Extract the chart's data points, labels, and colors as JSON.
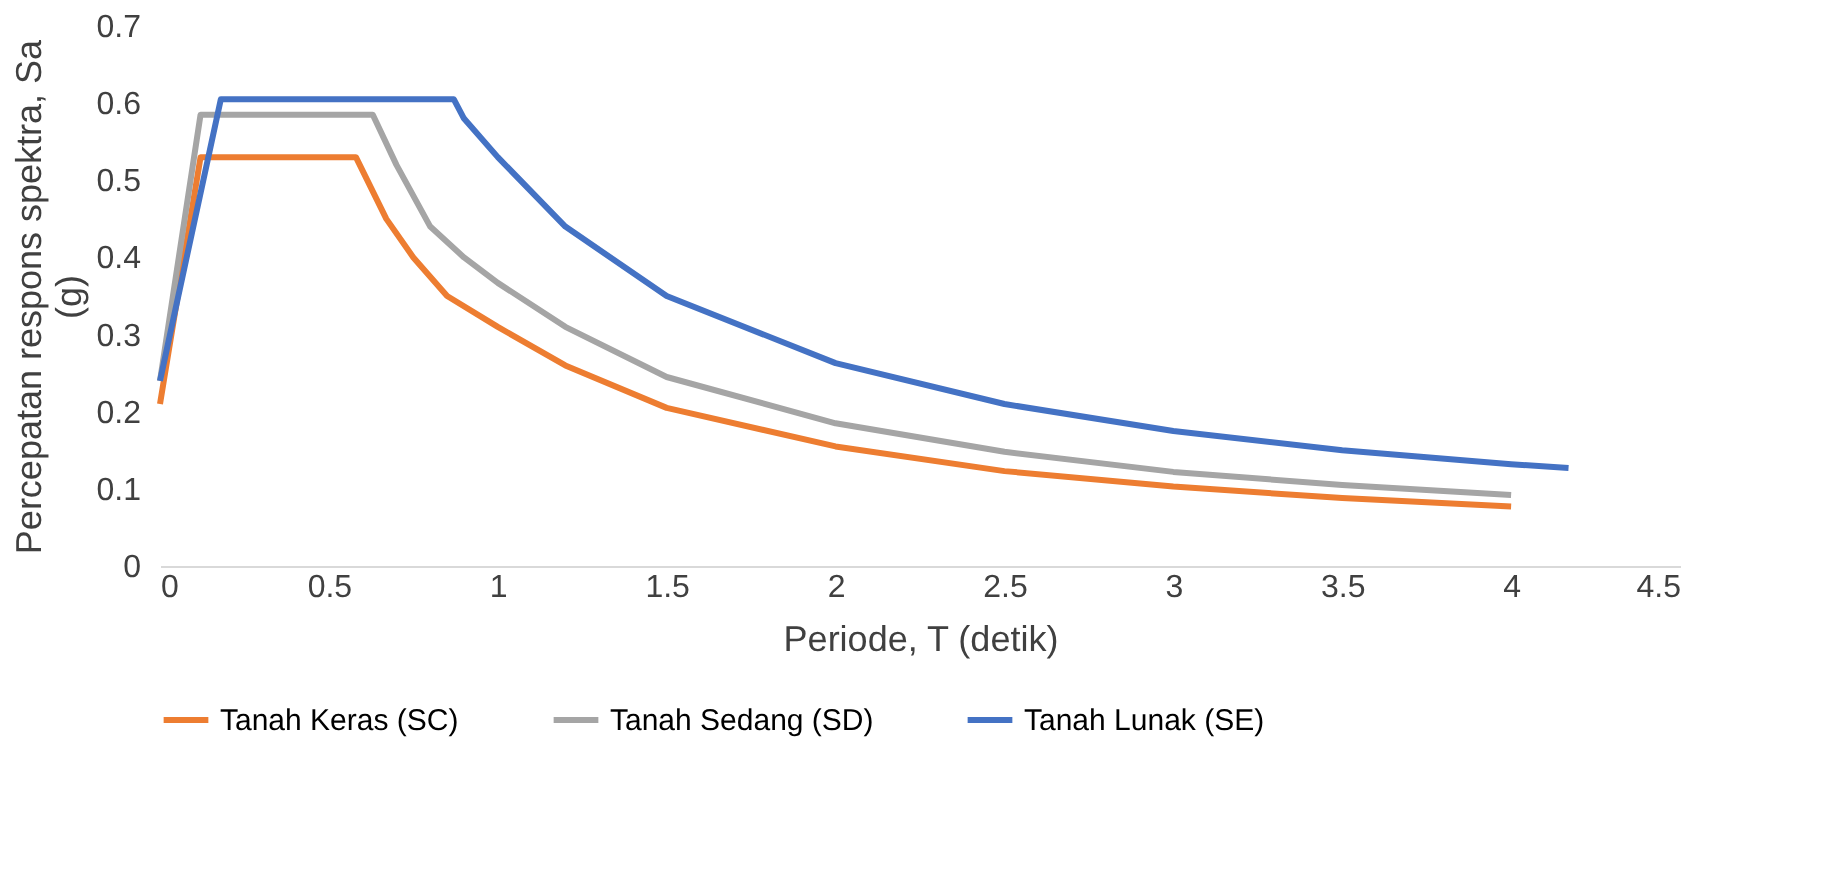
{
  "chart_data": {
    "type": "line",
    "xlabel": "Periode, T (detik)",
    "ylabel": "Percepatan respons spektra, Sa (g)",
    "xlim": [
      0,
      4.5
    ],
    "xticks": [
      0,
      0.5,
      1,
      1.5,
      2,
      2.5,
      3,
      3.5,
      4,
      4.5
    ],
    "ylim": [
      0,
      0.7
    ],
    "yticks": [
      0,
      0.1,
      0.2,
      0.3,
      0.4,
      0.5,
      0.6,
      0.7
    ],
    "grid": false,
    "legend": "bottom",
    "marker": "none",
    "line_style": "solid",
    "series": [
      {
        "name": "Tanah Keras (SC)",
        "color": "#ed7d31",
        "x": [
          0,
          0.12,
          0.58,
          0.67,
          0.75,
          0.85,
          1.0,
          1.2,
          1.5,
          2.0,
          2.5,
          3.0,
          3.5,
          4.0
        ],
        "values": [
          0.21,
          0.53,
          0.53,
          0.45,
          0.4,
          0.35,
          0.31,
          0.26,
          0.205,
          0.155,
          0.123,
          0.103,
          0.088,
          0.077
        ]
      },
      {
        "name": "Tanah Sedang (SD)",
        "color": "#a5a5a5",
        "x": [
          0,
          0.12,
          0.63,
          0.7,
          0.8,
          0.9,
          1.0,
          1.2,
          1.5,
          2.0,
          2.5,
          3.0,
          3.5,
          4.0
        ],
        "values": [
          0.24,
          0.585,
          0.585,
          0.52,
          0.44,
          0.4,
          0.367,
          0.31,
          0.245,
          0.185,
          0.148,
          0.122,
          0.105,
          0.092
        ]
      },
      {
        "name": "Tanah Lunak (SE)",
        "color": "#4472c4",
        "x": [
          0,
          0.18,
          0.87,
          0.9,
          1.0,
          1.2,
          1.5,
          2.0,
          2.5,
          3.0,
          3.5,
          4.0,
          4.17
        ],
        "values": [
          0.24,
          0.605,
          0.605,
          0.58,
          0.53,
          0.44,
          0.35,
          0.263,
          0.21,
          0.175,
          0.15,
          0.132,
          0.127
        ]
      }
    ]
  }
}
